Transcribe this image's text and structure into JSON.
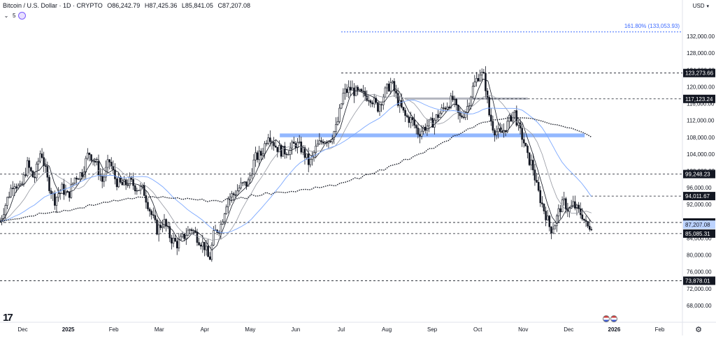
{
  "header": {
    "symbol_title": "Bitcoin / U.S. Dollar · 1D · CRYPTO",
    "o_label": "O",
    "o_value": "86,242.79",
    "h_label": "H",
    "h_value": "87,425.36",
    "l_label": "L",
    "l_value": "85,841.05",
    "c_label": "C",
    "c_value": "87,207.08",
    "indicator_count": "5"
  },
  "currency": "USD",
  "colors": {
    "up": "#131722",
    "price_tag": "#bcd3ff",
    "ma_blue": "#7aa7ff",
    "zone_blue": "#93b8ff",
    "fib_blue": "#3d6bff"
  },
  "chart_data": {
    "type": "candlestick",
    "title": "Bitcoin / U.S. Dollar · 1D · CRYPTO",
    "ylim": [
      64000,
      136000
    ],
    "y_ticks": [
      {
        "value": 132000,
        "label": "132,000.00"
      },
      {
        "value": 128000,
        "label": "128,000.00"
      },
      {
        "value": 124000,
        "label": "124,000.00"
      },
      {
        "value": 120000,
        "label": "120,000.00"
      },
      {
        "value": 116000,
        "label": "116,000.00"
      },
      {
        "value": 112000,
        "label": "112,000.00"
      },
      {
        "value": 108000,
        "label": "108,000.00"
      },
      {
        "value": 104000,
        "label": "104,000.00"
      },
      {
        "value": 100000,
        "label": "100,000.00"
      },
      {
        "value": 96000,
        "label": "96,000.00"
      },
      {
        "value": 92000,
        "label": "92,000.00"
      },
      {
        "value": 88000,
        "label": "88,000.00"
      },
      {
        "value": 84000,
        "label": "84,000.00"
      },
      {
        "value": 80000,
        "label": "80,000.00"
      },
      {
        "value": 76000,
        "label": "76,000.00"
      },
      {
        "value": 72000,
        "label": "72,000.00"
      },
      {
        "value": 68000,
        "label": "68,000.00"
      }
    ],
    "x_ticks": [
      {
        "label": "Dec",
        "x": 0.5,
        "bold": false
      },
      {
        "label": "2025",
        "x": 1.5,
        "bold": true
      },
      {
        "label": "Feb",
        "x": 2.5,
        "bold": false
      },
      {
        "label": "Mar",
        "x": 3.5,
        "bold": false
      },
      {
        "label": "Apr",
        "x": 4.5,
        "bold": false
      },
      {
        "label": "May",
        "x": 5.5,
        "bold": false
      },
      {
        "label": "Jun",
        "x": 6.5,
        "bold": false
      },
      {
        "label": "Jul",
        "x": 7.5,
        "bold": false
      },
      {
        "label": "Aug",
        "x": 8.5,
        "bold": false
      },
      {
        "label": "Sep",
        "x": 9.5,
        "bold": false
      },
      {
        "label": "Oct",
        "x": 10.5,
        "bold": false
      },
      {
        "label": "Nov",
        "x": 11.5,
        "bold": false
      },
      {
        "label": "Dec",
        "x": 12.5,
        "bold": false
      },
      {
        "label": "2026",
        "x": 13.5,
        "bold": true
      },
      {
        "label": "Feb",
        "x": 14.5,
        "bold": false
      }
    ],
    "xlim": [
      0,
      15
    ],
    "levels": [
      {
        "value": 123273.66,
        "label": "123,273.66",
        "x_start": 7.5,
        "style": "dashed"
      },
      {
        "value": 117123.24,
        "label": "117,123.24",
        "x_start": 10.4,
        "style": "dashed"
      },
      {
        "value": 99248.23,
        "label": "99,248.23",
        "x_start": 0.0,
        "style": "dashed"
      },
      {
        "value": 94011.67,
        "label": "94,011.67",
        "x_start": 12.8,
        "style": "dashed"
      },
      {
        "value": 87734.05,
        "label": "87,734.05",
        "x_start": 0.0,
        "style": "dashed"
      },
      {
        "value": 85085.31,
        "label": "85,085.31",
        "x_start": 0.0,
        "style": "dashed"
      },
      {
        "value": 73878.01,
        "label": "73,878.01",
        "x_start": 0.0,
        "style": "dashed"
      }
    ],
    "last_price": {
      "value": 87207.08,
      "label": "87,207.08"
    },
    "fib_level": {
      "value": 133053.93,
      "label": "161.80% (133,053.93)",
      "x_start": 7.5
    },
    "resistance_zone": {
      "low": 108000,
      "high": 108900,
      "x_start": 6.15,
      "x_end": 12.85
    },
    "gray_band": {
      "value": 117200,
      "x_start": 8.9,
      "x_end": 11.6
    },
    "price_path": [
      [
        0.0,
        88000
      ],
      [
        0.15,
        93000
      ],
      [
        0.3,
        97500
      ],
      [
        0.45,
        95500
      ],
      [
        0.6,
        101500
      ],
      [
        0.75,
        98000
      ],
      [
        0.9,
        105000
      ],
      [
        1.05,
        97500
      ],
      [
        1.2,
        93000
      ],
      [
        1.35,
        96000
      ],
      [
        1.5,
        94000
      ],
      [
        1.65,
        98500
      ],
      [
        1.8,
        99500
      ],
      [
        1.95,
        104500
      ],
      [
        2.1,
        102000
      ],
      [
        2.25,
        97500
      ],
      [
        2.4,
        102500
      ],
      [
        2.55,
        97500
      ],
      [
        2.7,
        96500
      ],
      [
        2.85,
        97500
      ],
      [
        3.0,
        96000
      ],
      [
        3.15,
        95500
      ],
      [
        3.3,
        90500
      ],
      [
        3.45,
        86000
      ],
      [
        3.6,
        88000
      ],
      [
        3.75,
        84000
      ],
      [
        3.9,
        82500
      ],
      [
        4.05,
        84500
      ],
      [
        4.2,
        86500
      ],
      [
        4.35,
        84000
      ],
      [
        4.5,
        82000
      ],
      [
        4.6,
        78500
      ],
      [
        4.7,
        85000
      ],
      [
        4.85,
        87000
      ],
      [
        5.0,
        93500
      ],
      [
        5.15,
        94500
      ],
      [
        5.3,
        96500
      ],
      [
        5.45,
        97000
      ],
      [
        5.6,
        103000
      ],
      [
        5.75,
        104000
      ],
      [
        5.9,
        109000
      ],
      [
        6.05,
        106000
      ],
      [
        6.2,
        104500
      ],
      [
        6.35,
        105000
      ],
      [
        6.5,
        106500
      ],
      [
        6.65,
        105000
      ],
      [
        6.8,
        101500
      ],
      [
        6.95,
        105500
      ],
      [
        7.1,
        107500
      ],
      [
        7.25,
        107500
      ],
      [
        7.4,
        110500
      ],
      [
        7.55,
        118500
      ],
      [
        7.7,
        119500
      ],
      [
        7.85,
        118500
      ],
      [
        8.0,
        118000
      ],
      [
        8.15,
        117500
      ],
      [
        8.3,
        115000
      ],
      [
        8.45,
        118500
      ],
      [
        8.6,
        121000
      ],
      [
        8.75,
        116500
      ],
      [
        8.9,
        113000
      ],
      [
        9.05,
        112000
      ],
      [
        9.2,
        109000
      ],
      [
        9.35,
        110500
      ],
      [
        9.5,
        111500
      ],
      [
        9.65,
        113500
      ],
      [
        9.8,
        115500
      ],
      [
        9.95,
        117000
      ],
      [
        10.1,
        112500
      ],
      [
        10.25,
        114500
      ],
      [
        10.4,
        120000
      ],
      [
        10.55,
        123500
      ],
      [
        10.65,
        122000
      ],
      [
        10.75,
        113500
      ],
      [
        10.85,
        110000
      ],
      [
        11.0,
        108500
      ],
      [
        11.15,
        111000
      ],
      [
        11.3,
        114500
      ],
      [
        11.4,
        110000
      ],
      [
        11.5,
        107500
      ],
      [
        11.6,
        103000
      ],
      [
        11.7,
        101500
      ],
      [
        11.8,
        96000
      ],
      [
        11.9,
        92500
      ],
      [
        12.0,
        89500
      ],
      [
        12.1,
        86000
      ],
      [
        12.2,
        87500
      ],
      [
        12.3,
        91000
      ],
      [
        12.4,
        92500
      ],
      [
        12.5,
        90500
      ],
      [
        12.6,
        92000
      ],
      [
        12.7,
        90500
      ],
      [
        12.8,
        89500
      ],
      [
        12.9,
        86500
      ],
      [
        13.0,
        87207
      ]
    ]
  }
}
